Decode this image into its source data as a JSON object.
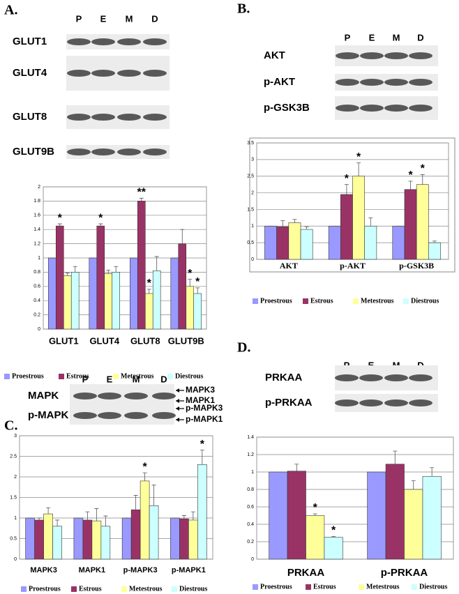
{
  "chart_data": [
    {
      "type": "bar",
      "categories": [
        "GLUT1",
        "GLUT4",
        "GLUT8",
        "GLUT9B"
      ],
      "ylim": [
        0,
        2
      ],
      "yticks": [
        0,
        0.2,
        0.4,
        0.6,
        0.8,
        1,
        1.2,
        1.4,
        1.6,
        1.8,
        2
      ],
      "grid": true,
      "series": [
        {
          "name": "Proestrous",
          "color": "#9999ff",
          "values": [
            1,
            1,
            1,
            1
          ],
          "errors": [
            0,
            0,
            0,
            0
          ]
        },
        {
          "name": "Estrous",
          "color": "#993366",
          "values": [
            1.45,
            1.45,
            1.8,
            1.2
          ],
          "errors": [
            0.03,
            0.03,
            0.04,
            0.2
          ]
        },
        {
          "name": "Metestrous",
          "color": "#ffff99",
          "values": [
            0.75,
            0.78,
            0.5,
            0.6
          ],
          "errors": [
            0.04,
            0.05,
            0.06,
            0.1
          ]
        },
        {
          "name": "Diestrous",
          "color": "#ccffff",
          "values": [
            0.8,
            0.8,
            0.82,
            0.5
          ],
          "errors": [
            0.08,
            0.08,
            0.2,
            0.08
          ]
        }
      ],
      "annotations": [
        {
          "text": "*",
          "category": "GLUT1",
          "series": "Estrous"
        },
        {
          "text": "*",
          "category": "GLUT4",
          "series": "Estrous"
        },
        {
          "text": "**",
          "category": "GLUT8",
          "series": "Estrous"
        },
        {
          "text": "*",
          "category": "GLUT8",
          "series": "Metestrous"
        },
        {
          "text": "*",
          "category": "GLUT9B",
          "series": "Metestrous"
        },
        {
          "text": "*",
          "category": "GLUT9B",
          "series": "Diestrous"
        }
      ]
    },
    {
      "type": "bar",
      "categories": [
        "AKT",
        "p-AKT",
        "p-GSK3B"
      ],
      "ylim": [
        0,
        3.5
      ],
      "yticks": [
        0,
        0.5,
        1,
        1.5,
        2,
        2.5,
        3,
        3.5
      ],
      "grid": true,
      "series": [
        {
          "name": "Proestrous",
          "color": "#9999ff",
          "values": [
            1,
            1,
            1
          ],
          "errors": [
            0,
            0,
            0
          ]
        },
        {
          "name": "Estrous",
          "color": "#993366",
          "values": [
            0.98,
            1.95,
            2.1
          ],
          "errors": [
            0.18,
            0.3,
            0.25
          ]
        },
        {
          "name": "Metestrous",
          "color": "#ffff99",
          "values": [
            1.1,
            2.5,
            2.25
          ],
          "errors": [
            0.1,
            0.4,
            0.3
          ]
        },
        {
          "name": "Diestrous",
          "color": "#ccffff",
          "values": [
            0.9,
            1,
            0.5
          ],
          "errors": [
            0.08,
            0.25,
            0.05
          ]
        }
      ],
      "annotations": [
        {
          "text": "*",
          "category": "p-AKT",
          "series": "Estrous"
        },
        {
          "text": "*",
          "category": "p-AKT",
          "series": "Metestrous"
        },
        {
          "text": "*",
          "category": "p-GSK3B",
          "series": "Estrous"
        },
        {
          "text": "*",
          "category": "p-GSK3B",
          "series": "Metestrous"
        }
      ]
    },
    {
      "type": "bar",
      "categories": [
        "MAPK3",
        "MAPK1",
        "p-MAPK3",
        "p-MAPK1"
      ],
      "ylim": [
        0,
        3
      ],
      "yticks": [
        0,
        0.5,
        1,
        1.5,
        2,
        2.5,
        3
      ],
      "grid": true,
      "series": [
        {
          "name": "Proestrous",
          "color": "#9999ff",
          "values": [
            1,
            1,
            1,
            1
          ],
          "errors": [
            0,
            0,
            0,
            0
          ]
        },
        {
          "name": "Estrous",
          "color": "#993366",
          "values": [
            0.95,
            0.95,
            1.2,
            0.98
          ],
          "errors": [
            0.05,
            0.2,
            0.35,
            0.08
          ]
        },
        {
          "name": "Metestrous",
          "color": "#ffff99",
          "values": [
            1.1,
            0.93,
            1.9,
            0.95
          ],
          "errors": [
            0.15,
            0.3,
            0.2,
            0.2
          ]
        },
        {
          "name": "Diestrous",
          "color": "#ccffff",
          "values": [
            0.8,
            0.8,
            1.3,
            2.3
          ],
          "errors": [
            0.15,
            0.25,
            0.5,
            0.35
          ]
        }
      ],
      "annotations": [
        {
          "text": "*",
          "category": "p-MAPK3",
          "series": "Metestrous"
        },
        {
          "text": "*",
          "category": "p-MAPK1",
          "series": "Diestrous"
        }
      ]
    },
    {
      "type": "bar",
      "categories": [
        "PRKAA",
        "p-PRKAA"
      ],
      "ylim": [
        0,
        1.4
      ],
      "yticks": [
        0,
        0.2,
        0.4,
        0.6,
        0.8,
        1,
        1.2,
        1.4
      ],
      "grid": true,
      "series": [
        {
          "name": "Proestrous",
          "color": "#9999ff",
          "values": [
            1,
            1
          ],
          "errors": [
            0,
            0
          ]
        },
        {
          "name": "Estrous",
          "color": "#993366",
          "values": [
            1.01,
            1.09
          ],
          "errors": [
            0.08,
            0.15
          ]
        },
        {
          "name": "Metestrous",
          "color": "#ffff99",
          "values": [
            0.5,
            0.8
          ],
          "errors": [
            0.02,
            0.1
          ]
        },
        {
          "name": "Diestrous",
          "color": "#ccffff",
          "values": [
            0.25,
            0.95
          ],
          "errors": [
            0.01,
            0.1
          ]
        }
      ],
      "annotations": [
        {
          "text": "*",
          "category": "PRKAA",
          "series": "Metestrous"
        },
        {
          "text": "*",
          "category": "PRKAA",
          "series": "Diestrous"
        }
      ]
    }
  ],
  "panels": [
    {
      "letter": "A.",
      "lanes": [
        "P",
        "E",
        "M",
        "D"
      ],
      "blots": [
        "GLUT1",
        "GLUT4",
        "GLUT8",
        "GLUT9B"
      ],
      "bands": []
    },
    {
      "letter": "B.",
      "lanes": [
        "P",
        "E",
        "M",
        "D"
      ],
      "blots": [
        "AKT",
        "p-AKT",
        "p-GSK3B"
      ],
      "bands": []
    },
    {
      "letter": "C.",
      "lanes": [
        "P",
        "E",
        "M",
        "D"
      ],
      "blots": [
        "MAPK",
        "p-MAPK"
      ],
      "bands": [
        "MAPK3",
        "MAPK1",
        "p-MAPK3",
        "p-MAPK1"
      ]
    },
    {
      "letter": "D.",
      "lanes": [
        "P",
        "E",
        "M",
        "D"
      ],
      "blots": [
        "PRKAA",
        "p-PRKAA"
      ],
      "bands": []
    }
  ]
}
